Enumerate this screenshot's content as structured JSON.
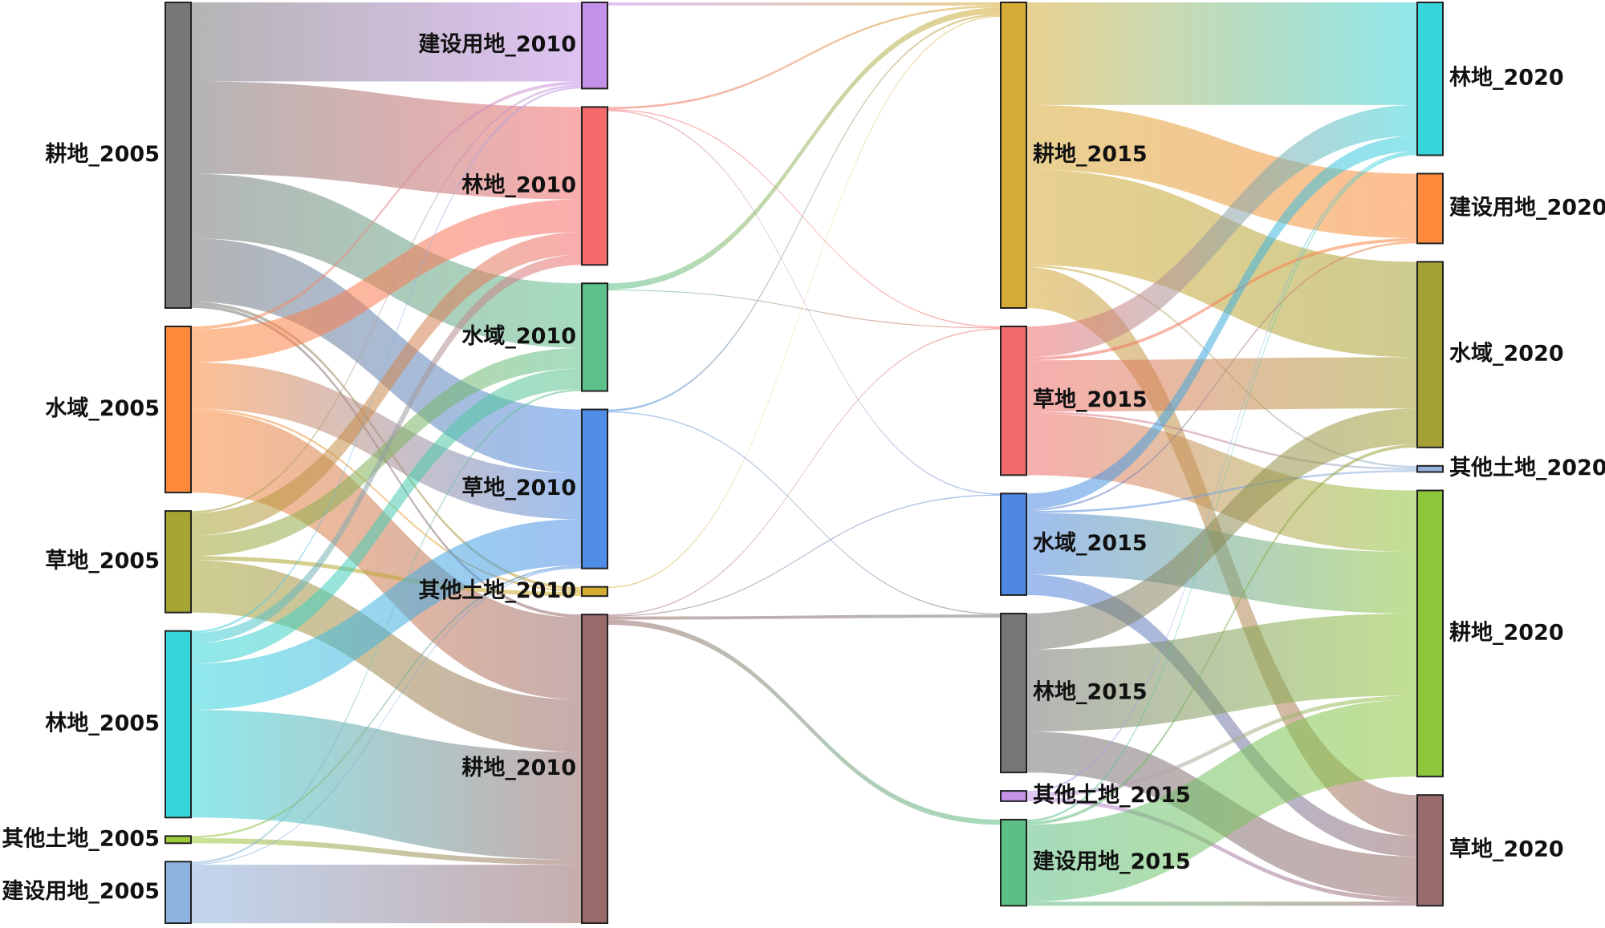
{
  "chart_data": {
    "type": "sankey",
    "columns": [
      [
        {
          "name": "耕地_2005",
          "color": "#777777"
        },
        {
          "name": "水域_2005",
          "color": "#fd8a3b"
        },
        {
          "name": "草地_2005",
          "color": "#a5a533"
        },
        {
          "name": "林地_2005",
          "color": "#35d6db"
        },
        {
          "name": "其他土地_2005",
          "color": "#9ccc3c"
        },
        {
          "name": "建设用地_2005",
          "color": "#8fb3df"
        }
      ],
      [
        {
          "name": "建设用地_2010",
          "color": "#c491e8"
        },
        {
          "name": "林地_2010",
          "color": "#f56a6a"
        },
        {
          "name": "水域_2010",
          "color": "#5cc08a"
        },
        {
          "name": "草地_2010",
          "color": "#4f8de6"
        },
        {
          "name": "其他土地_2010",
          "color": "#d4ac30"
        },
        {
          "name": "耕地_2010",
          "color": "#986a6a"
        }
      ],
      [
        {
          "name": "耕地_2015",
          "color": "#d6ab36"
        },
        {
          "name": "草地_2015",
          "color": "#f16b6b"
        },
        {
          "name": "水域_2015",
          "color": "#4f88e2"
        },
        {
          "name": "林地_2015",
          "color": "#777777"
        },
        {
          "name": "其他土地_2015",
          "color": "#c493e6"
        },
        {
          "name": "建设用地_2015",
          "color": "#5cbf85"
        }
      ],
      [
        {
          "name": "林地_2020",
          "color": "#37d4db"
        },
        {
          "name": "建设用地_2020",
          "color": "#fd8a3b"
        },
        {
          "name": "水域_2020",
          "color": "#a4a033"
        },
        {
          "name": "其他土地_2020",
          "color": "#94b3dc"
        },
        {
          "name": "耕地_2020",
          "color": "#8ec63a"
        },
        {
          "name": "草地_2020",
          "color": "#976b6b"
        }
      ]
    ],
    "links": [
      {
        "source": "耕地_2005",
        "target": "建设用地_2010",
        "value": 77
      },
      {
        "source": "耕地_2005",
        "target": "林地_2010",
        "value": 90
      },
      {
        "source": "耕地_2005",
        "target": "水域_2010",
        "value": 63
      },
      {
        "source": "耕地_2005",
        "target": "草地_2010",
        "value": 62
      },
      {
        "source": "耕地_2005",
        "target": "其他土地_2010",
        "value": 3
      },
      {
        "source": "耕地_2005",
        "target": "耕地_2010",
        "value": 3
      },
      {
        "source": "水域_2005",
        "target": "建设用地_2010",
        "value": 3
      },
      {
        "source": "水域_2005",
        "target": "林地_2010",
        "value": 32
      },
      {
        "source": "水域_2005",
        "target": "草地_2010",
        "value": 45
      },
      {
        "source": "水域_2005",
        "target": "其他土地_2010",
        "value": 2
      },
      {
        "source": "水域_2005",
        "target": "耕地_2010",
        "value": 80
      },
      {
        "source": "草地_2005",
        "target": "建设用地_2010",
        "value": 2
      },
      {
        "source": "草地_2005",
        "target": "林地_2010",
        "value": 22
      },
      {
        "source": "草地_2005",
        "target": "水域_2010",
        "value": 20
      },
      {
        "source": "草地_2005",
        "target": "其他土地_2010",
        "value": 4
      },
      {
        "source": "草地_2005",
        "target": "耕地_2010",
        "value": 51
      },
      {
        "source": "林地_2005",
        "target": "建设用地_2010",
        "value": 2
      },
      {
        "source": "林地_2005",
        "target": "林地_2010",
        "value": 10
      },
      {
        "source": "林地_2005",
        "target": "水域_2010",
        "value": 20
      },
      {
        "source": "林地_2005",
        "target": "草地_2010",
        "value": 45
      },
      {
        "source": "林地_2005",
        "target": "耕地_2010",
        "value": 105
      },
      {
        "source": "其他土地_2005",
        "target": "草地_2010",
        "value": 2
      },
      {
        "source": "其他土地_2005",
        "target": "耕地_2010",
        "value": 5
      },
      {
        "source": "建设用地_2005",
        "target": "水域_2010",
        "value": 2
      },
      {
        "source": "建设用地_2005",
        "target": "草地_2010",
        "value": 1
      },
      {
        "source": "建设用地_2005",
        "target": "耕地_2010",
        "value": 57
      },
      {
        "source": "建设用地_2010",
        "target": "耕地_2015",
        "value": 3
      },
      {
        "source": "林地_2010",
        "target": "耕地_2015",
        "value": 2
      },
      {
        "source": "林地_2010",
        "target": "草地_2015",
        "value": 1
      },
      {
        "source": "林地_2010",
        "target": "水域_2015",
        "value": 1
      },
      {
        "source": "水域_2010",
        "target": "耕地_2015",
        "value": 6
      },
      {
        "source": "水域_2010",
        "target": "草地_2015",
        "value": 1
      },
      {
        "source": "草地_2010",
        "target": "耕地_2015",
        "value": 2
      },
      {
        "source": "草地_2010",
        "target": "林地_2015",
        "value": 1
      },
      {
        "source": "其他土地_2010",
        "target": "耕地_2015",
        "value": 1
      },
      {
        "source": "耕地_2010",
        "target": "草地_2015",
        "value": 1
      },
      {
        "source": "耕地_2010",
        "target": "水域_2015",
        "value": 1
      },
      {
        "source": "耕地_2010",
        "target": "林地_2015",
        "value": 3
      },
      {
        "source": "耕地_2010",
        "target": "建设用地_2015",
        "value": 5
      },
      {
        "source": "耕地_2015",
        "target": "林地_2020",
        "value": 100
      },
      {
        "source": "耕地_2015",
        "target": "建设用地_2020",
        "value": 63
      },
      {
        "source": "耕地_2015",
        "target": "水域_2020",
        "value": 93
      },
      {
        "source": "耕地_2015",
        "target": "其他土地_2020",
        "value": 2
      },
      {
        "source": "耕地_2015",
        "target": "草地_2020",
        "value": 40
      },
      {
        "source": "草地_2015",
        "target": "林地_2020",
        "value": 30
      },
      {
        "source": "草地_2015",
        "target": "建设用地_2020",
        "value": 3
      },
      {
        "source": "草地_2015",
        "target": "水域_2020",
        "value": 50
      },
      {
        "source": "草地_2015",
        "target": "其他土地_2020",
        "value": 2
      },
      {
        "source": "草地_2015",
        "target": "耕地_2020",
        "value": 60
      },
      {
        "source": "水域_2015",
        "target": "林地_2020",
        "value": 15
      },
      {
        "source": "水域_2015",
        "target": "建设用地_2020",
        "value": 2
      },
      {
        "source": "水域_2015",
        "target": "其他土地_2020",
        "value": 2
      },
      {
        "source": "水域_2015",
        "target": "耕地_2020",
        "value": 60
      },
      {
        "source": "水域_2015",
        "target": "草地_2020",
        "value": 20
      },
      {
        "source": "林地_2015",
        "target": "水域_2020",
        "value": 35
      },
      {
        "source": "林地_2015",
        "target": "耕地_2020",
        "value": 80
      },
      {
        "source": "林地_2015",
        "target": "草地_2020",
        "value": 40
      },
      {
        "source": "其他土地_2015",
        "target": "林地_2020",
        "value": 2
      },
      {
        "source": "其他土地_2015",
        "target": "耕地_2020",
        "value": 4
      },
      {
        "source": "其他土地_2015",
        "target": "草地_2020",
        "value": 4
      },
      {
        "source": "建设用地_2015",
        "target": "林地_2020",
        "value": 2
      },
      {
        "source": "建设用地_2015",
        "target": "水域_2020",
        "value": 3
      },
      {
        "source": "建设用地_2015",
        "target": "耕地_2020",
        "value": 75
      },
      {
        "source": "建设用地_2015",
        "target": "草地_2020",
        "value": 4
      }
    ]
  }
}
